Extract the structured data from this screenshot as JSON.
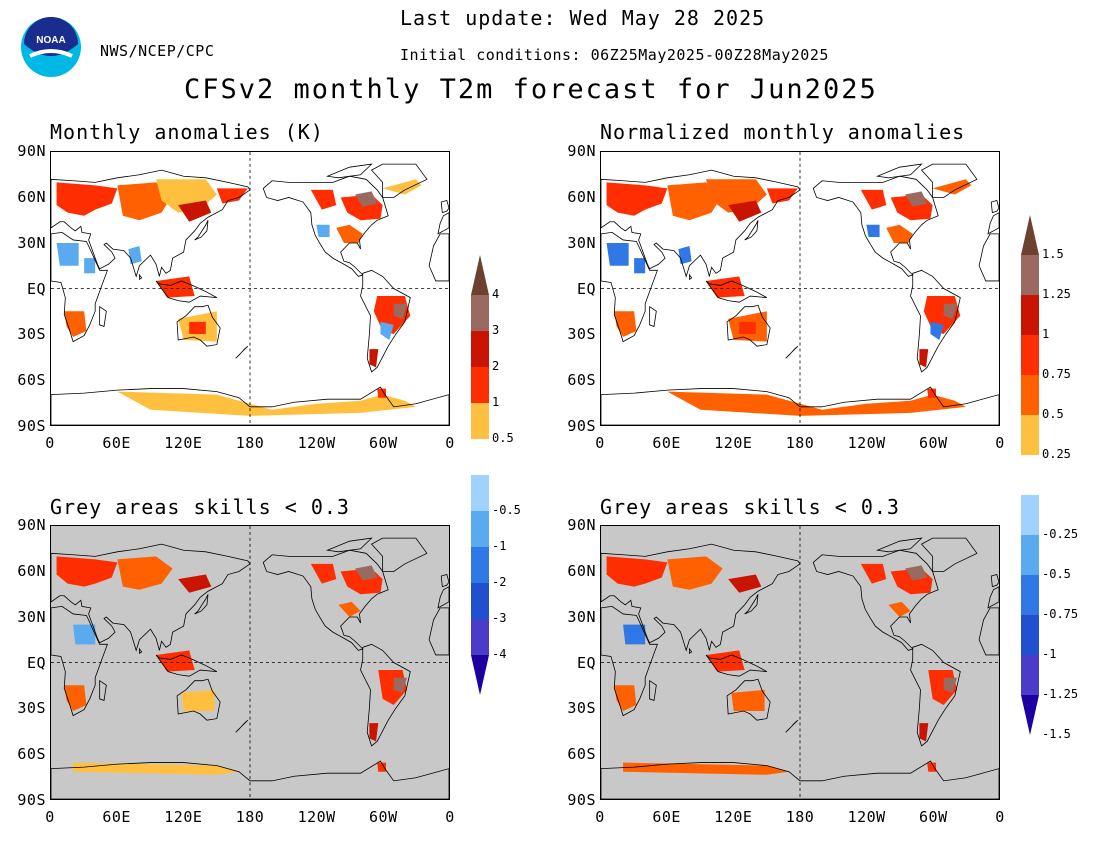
{
  "header": {
    "agency": "NWS/NCEP/CPC",
    "logo_text": "NOAA",
    "last_update": "Last update: Wed May 28 2025",
    "initial_conditions": "Initial conditions: 06Z25May2025-00Z28May2025",
    "title": "CFSv2 monthly T2m forecast for Jun2025"
  },
  "colors": {
    "title": "#e0302c",
    "panel_title": "#1f3fe0",
    "ocean": "#ffffff",
    "low_skill_grey": "#c8c8c8",
    "warm_0_5": "#ffc040",
    "warm_1": "#ff6000",
    "warm_2": "#ff2e00",
    "warm_3": "#c81400",
    "warm_4": "#9a6a60",
    "warm_max": "#6e4030",
    "cool_0_5": "#a0d2ff",
    "cool_1": "#5aaaf0",
    "cool_2": "#2f78e6",
    "cool_3": "#2050d0",
    "cool_4": "#4a3cc8",
    "cool_min": "#1e00a0"
  },
  "axes": {
    "y_ticks": [
      "90N",
      "60N",
      "30N",
      "EQ",
      "30S",
      "60S",
      "90S"
    ],
    "x_ticks": [
      "0",
      "60E",
      "120E",
      "180",
      "120W",
      "60W",
      "0"
    ]
  },
  "panels": [
    {
      "title": "Monthly anomalies (K)",
      "skill_mask": false
    },
    {
      "title": "Normalized monthly anomalies",
      "skill_mask": false
    },
    {
      "title": "Grey areas skills < 0.3",
      "skill_mask": true
    },
    {
      "title": "Grey areas skills < 0.3",
      "skill_mask": true
    }
  ],
  "colorbars": [
    {
      "name": "anomaly-kelvin",
      "labels": [
        "4",
        "3",
        "2",
        "1",
        "0.5",
        "-0.5",
        "-1",
        "-2",
        "-3",
        "-4"
      ],
      "colors": [
        "#6e4030",
        "#9a6a60",
        "#c81400",
        "#ff2e00",
        "#ffc040",
        "#ffffff",
        "#a0d2ff",
        "#5aaaf0",
        "#2f78e6",
        "#2050d0",
        "#4a3cc8",
        "#1e00a0"
      ]
    },
    {
      "name": "normalized-anomaly",
      "labels": [
        "1.5",
        "1.25",
        "1",
        "0.75",
        "0.5",
        "0.25",
        "-0.25",
        "-0.5",
        "-0.75",
        "-1",
        "-1.25",
        "-1.5"
      ],
      "colors": [
        "#6e4030",
        "#9a6a60",
        "#c81400",
        "#ff2e00",
        "#ff6000",
        "#ffc040",
        "#ffffff",
        "#a0d2ff",
        "#5aaaf0",
        "#2f78e6",
        "#2050d0",
        "#4a3cc8",
        "#1e00a0"
      ]
    }
  ]
}
